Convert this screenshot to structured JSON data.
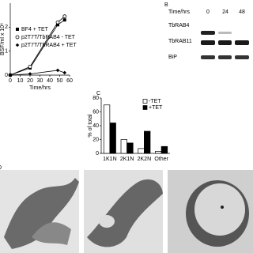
{
  "chart_data": [
    {
      "type": "line",
      "ylabel": "BSF/ml x 10⁶",
      "xlabel": "Time/hrs",
      "x": [
        0,
        20,
        48,
        55
      ],
      "series": [
        {
          "name": "BF4 + TET",
          "color": "#000000",
          "marker": "square",
          "values": [
            0,
            0.3,
            2.1,
            2.3
          ]
        },
        {
          "name": "p2T7T/TbRAB4 - TET",
          "color": "#000000",
          "marker": "circle",
          "values": [
            0,
            0.35,
            2.2,
            2.45
          ]
        },
        {
          "name": "p2T7T/TbRAB4 + TET",
          "color": "#000000",
          "marker": "diamond",
          "values": [
            0,
            0.05,
            0.2,
            0.1
          ]
        }
      ],
      "xlim": [
        0,
        60
      ],
      "xticks": [
        0,
        10,
        20,
        30,
        40,
        50,
        60
      ],
      "ylim": [
        0,
        3
      ],
      "yticks": [
        0,
        1,
        2
      ]
    },
    {
      "type": "bar",
      "ylabel": "% of total",
      "categories": [
        "1K1N",
        "2K1N",
        "2K2N",
        "Other"
      ],
      "series": [
        {
          "name": "-TET",
          "color": "#ffffff",
          "values": [
            70,
            20,
            7,
            3
          ]
        },
        {
          "name": "+TET",
          "color": "#000000",
          "values": [
            44,
            15,
            32,
            10
          ]
        }
      ],
      "ylim": [
        0,
        80
      ],
      "yticks": [
        0,
        20,
        40,
        60,
        80
      ]
    }
  ],
  "blot": {
    "time_label": "Time/hrs",
    "timepoints": [
      "0",
      "24",
      "48"
    ],
    "rows": [
      "TbRAB4",
      "TbRAB11",
      "BiP"
    ]
  },
  "panel_labels": [
    "B",
    "C",
    "D"
  ]
}
